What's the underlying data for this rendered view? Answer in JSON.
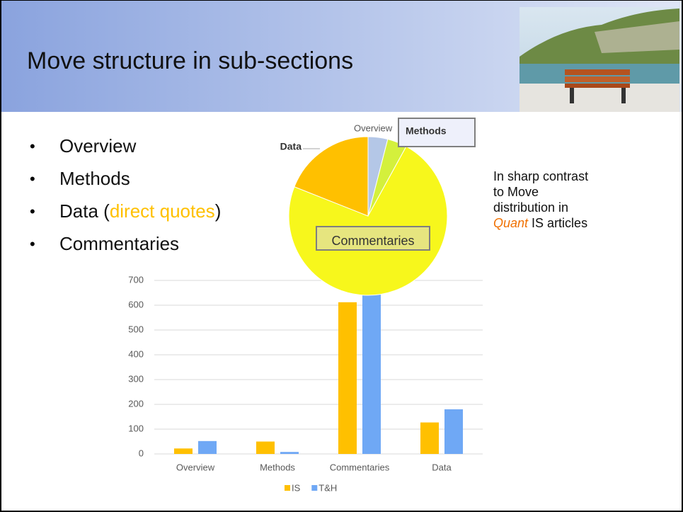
{
  "title": "Move structure in sub-sections",
  "bullets": [
    [
      "Overview"
    ],
    [
      "Methods"
    ],
    [
      "Data (",
      "direct quotes",
      ")"
    ],
    [
      "Commentaries"
    ]
  ],
  "note": {
    "lines": [
      "In sharp contrast",
      "to Move",
      "distribution in"
    ],
    "last": [
      "Quant",
      " IS articles"
    ]
  },
  "chart_data": [
    {
      "type": "bar",
      "categories": [
        "Overview",
        "Methods",
        "Commentaries",
        "Data"
      ],
      "series": [
        {
          "name": "IS",
          "color": "#ffc000",
          "values": [
            22,
            50,
            612,
            127
          ]
        },
        {
          "name": "T&H",
          "color": "#6fa8f5",
          "values": [
            52,
            8,
            680,
            180
          ]
        }
      ],
      "ylim": [
        0,
        700
      ],
      "yticks": [
        0,
        100,
        200,
        300,
        400,
        500,
        600,
        700
      ],
      "grid": true,
      "legend": "bottom"
    },
    {
      "type": "pie",
      "categories": [
        "Overview",
        "Methods",
        "Commentaries",
        "Data"
      ],
      "values": [
        4,
        4,
        73,
        19
      ],
      "colors": [
        "#b4c7e7",
        "#d4f03c",
        "#f7f71c",
        "#ffc000"
      ]
    }
  ]
}
